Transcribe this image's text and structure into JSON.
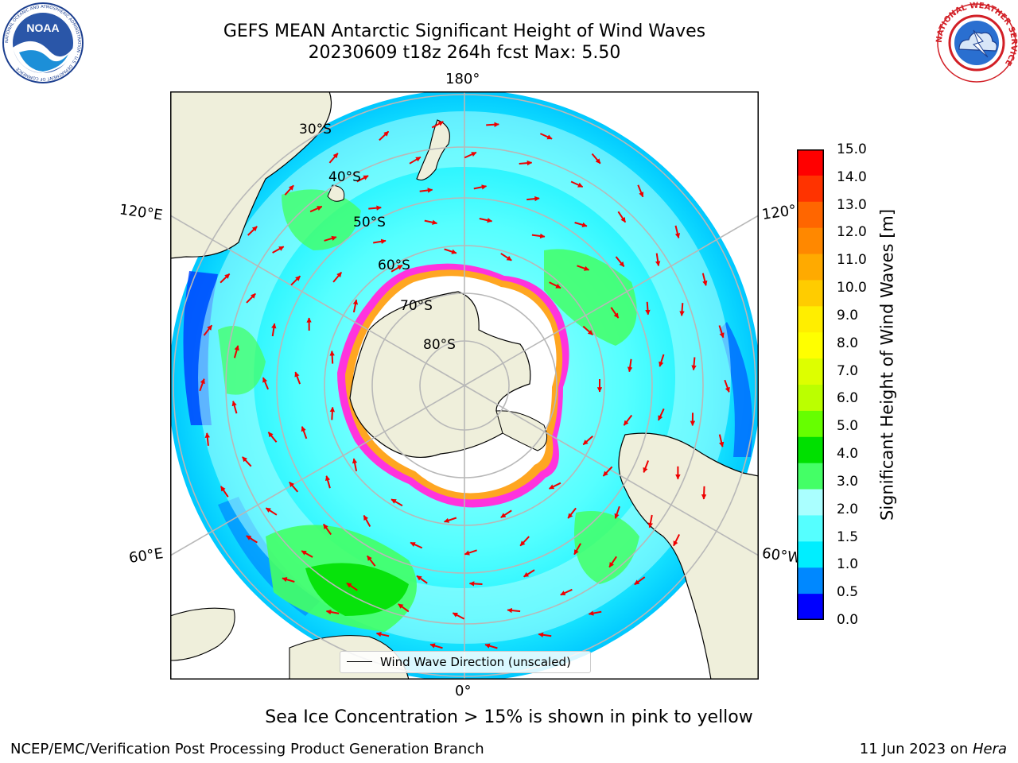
{
  "header": {
    "title_line1": "GEFS MEAN Antarctic Significant Height of Wind Waves",
    "title_line2": "20230609 t18z 264h fcst   Max: 5.50"
  },
  "logos": {
    "noaa_text": "NOAA",
    "noaa_ring_text": "NATIONAL OCEANIC AND ATMOSPHERIC ADMINISTRATION · U.S. DEPARTMENT OF COMMERCE",
    "nws_ring_text": "NATIONAL WEATHER SERVICE",
    "noaa_icon": "noaa-logo",
    "nws_icon": "nws-logo"
  },
  "map": {
    "projection": "south-polar-stereographic",
    "longitude_labels": [
      "180°",
      "120°E",
      "120°",
      "60°E",
      "60°W",
      "0°"
    ],
    "latitude_labels": [
      "30°S",
      "40°S",
      "50°S",
      "60°S",
      "70°S",
      "80°S"
    ],
    "colors": {
      "land": "#efefdb",
      "ice": "#ffffff",
      "grid": "#b8b8b8",
      "arrow": "#ee0000"
    },
    "legend": {
      "label": "Wind Wave Direction (unscaled)"
    }
  },
  "colorbar": {
    "label": "Significant Height of Wind Waves [m]",
    "ticks": [
      "15.0",
      "14.0",
      "13.0",
      "12.0",
      "11.0",
      "10.0",
      "9.0",
      "8.0",
      "7.0",
      "6.0",
      "5.0",
      "4.0",
      "3.0",
      "2.0",
      "1.5",
      "1.0",
      "0.5",
      "0.0"
    ],
    "colors_top_to_bottom": [
      "#ff0000",
      "#ff3300",
      "#ff6600",
      "#ff8800",
      "#ffaa00",
      "#ffcc00",
      "#ffee00",
      "#ffff00",
      "#ddff00",
      "#bbff00",
      "#66ff00",
      "#00e000",
      "#44ff66",
      "#aaffff",
      "#55ffff",
      "#00eeff",
      "#0088ff",
      "#0000ff"
    ]
  },
  "notes": {
    "sea_ice": "Sea Ice Concentration > 15% is shown in pink to yellow"
  },
  "footer": {
    "left": "NCEP/EMC/Verification Post Processing Product Generation Branch",
    "date_prefix": "11 Jun 2023 on ",
    "machine": "Hera"
  }
}
